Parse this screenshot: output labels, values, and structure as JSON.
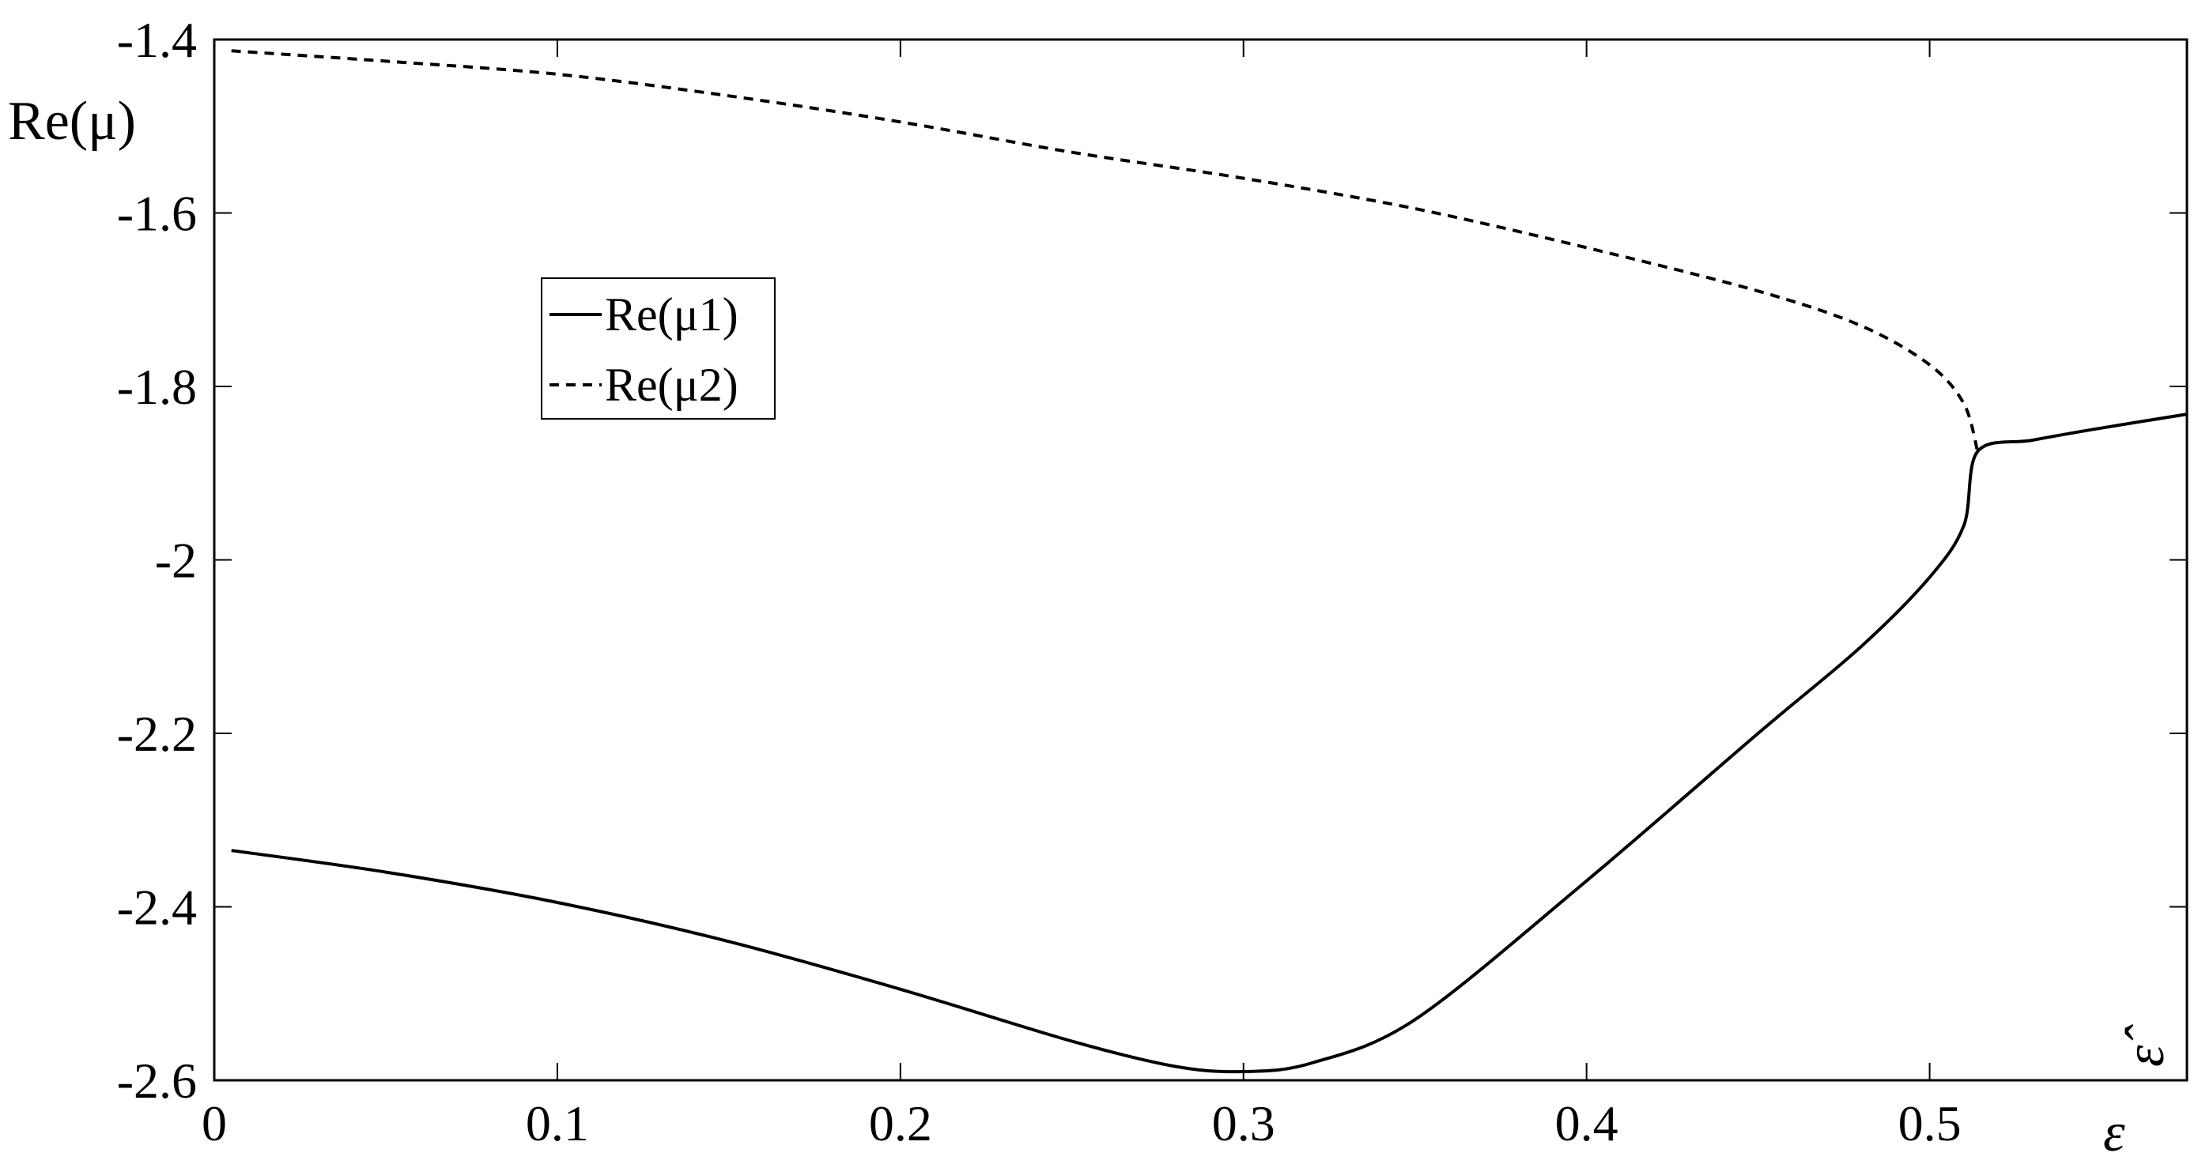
{
  "chart_data": {
    "type": "line",
    "title": "",
    "xlabel": "ε",
    "ylabel": "Re(μ)",
    "corner_annotation": "ε̂",
    "xlim": [
      0,
      0.575
    ],
    "ylim": [
      -2.6,
      -1.4
    ],
    "xticks": [
      "0",
      "0.1",
      "0.2",
      "0.3",
      "0.4",
      "0.5"
    ],
    "xtick_values": [
      0,
      0.1,
      0.2,
      0.3,
      0.4,
      0.5
    ],
    "yticks": [
      "-1.4",
      "-1.6",
      "-1.8",
      "-2",
      "-2.2",
      "-2.4",
      "-2.6"
    ],
    "ytick_values": [
      -1.4,
      -1.6,
      -1.8,
      -2.0,
      -2.2,
      -2.4,
      -2.6
    ],
    "grid": false,
    "legend_position": "upper-left",
    "series": [
      {
        "name": "Re(μ1)",
        "style": "solid",
        "color": "#000000",
        "x": [
          0.005,
          0.05,
          0.1,
          0.15,
          0.2,
          0.25,
          0.28,
          0.3,
          0.32,
          0.35,
          0.4,
          0.45,
          0.48,
          0.5,
          0.51,
          0.514,
          0.53,
          0.55,
          0.575
        ],
        "y": [
          -2.335,
          -2.36,
          -2.395,
          -2.44,
          -2.495,
          -2.555,
          -2.584,
          -2.59,
          -2.58,
          -2.53,
          -2.37,
          -2.2,
          -2.1,
          -2.02,
          -1.96,
          -1.875,
          -1.862,
          -1.848,
          -1.832
        ]
      },
      {
        "name": "Re(μ2)",
        "style": "dashed",
        "color": "#000000",
        "x": [
          0.005,
          0.05,
          0.1,
          0.15,
          0.2,
          0.25,
          0.3,
          0.35,
          0.4,
          0.45,
          0.48,
          0.5,
          0.51,
          0.514
        ],
        "y": [
          -1.413,
          -1.425,
          -1.44,
          -1.465,
          -1.495,
          -1.53,
          -1.56,
          -1.595,
          -1.64,
          -1.69,
          -1.73,
          -1.775,
          -1.82,
          -1.875
        ]
      }
    ],
    "legend": {
      "entries": [
        "Re(μ1)",
        "Re(μ2)"
      ]
    }
  }
}
